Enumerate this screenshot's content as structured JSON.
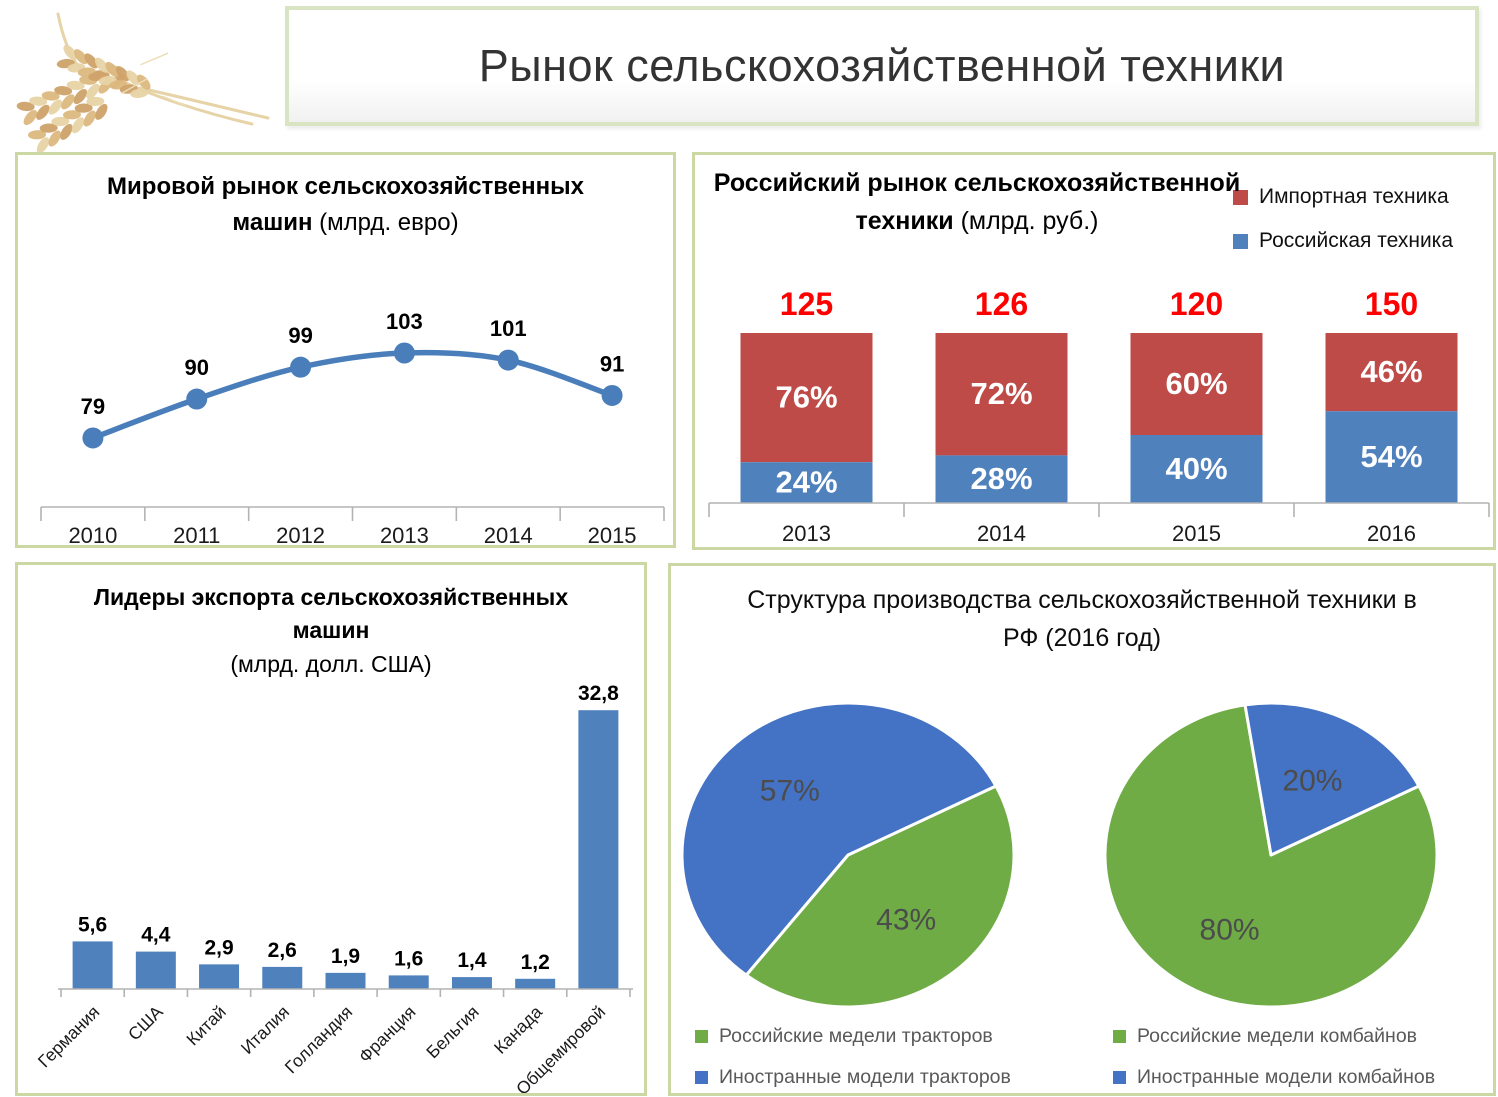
{
  "header": {
    "title": "Рынок сельскохозяйственной техники"
  },
  "chart_data": [
    {
      "id": "world-market",
      "type": "line",
      "title_line1": "Мировой рынок сельскохозяйственных",
      "title_line2_bold": "машин",
      "title_unit": "(млрд. евро)",
      "categories": [
        "2010",
        "2011",
        "2012",
        "2013",
        "2014",
        "2015"
      ],
      "values": [
        79,
        90,
        99,
        103,
        101,
        91
      ],
      "data_labels": [
        "79",
        "90",
        "99",
        "103",
        "101",
        "91"
      ],
      "line_color": "#4a7ebb",
      "marker_color": "#4a7ebb",
      "data_label_color": "#000000",
      "axis_color": "#b3b3b3",
      "tick_label_color": "#1a1a1a",
      "ylim": [
        60,
        115
      ],
      "grid": false,
      "legend": null
    },
    {
      "id": "russian-market",
      "type": "stacked-bar-100",
      "title_line1": "Российский рынок сельскохозяйственной",
      "title_line2_bold": "техники",
      "title_unit": "(млрд. руб.)",
      "categories": [
        "2013",
        "2014",
        "2015",
        "2016"
      ],
      "series": [
        {
          "name": "Импортная техника",
          "color": "#be4b48",
          "values_pct": [
            76,
            72,
            60,
            46
          ],
          "labels": [
            "76%",
            "72%",
            "60%",
            "46%"
          ]
        },
        {
          "name": "Российская техника",
          "color": "#4f81bd",
          "values_pct": [
            24,
            28,
            40,
            54
          ],
          "labels": [
            "24%",
            "28%",
            "40%",
            "54%"
          ]
        }
      ],
      "totals": [
        125,
        126,
        120,
        150
      ],
      "totals_labels": [
        "125",
        "126",
        "120",
        "150"
      ],
      "totals_color": "#fe0000",
      "pct_label_color": "#ffffff",
      "axis_color": "#b3b3b3",
      "tick_label_color": "#1a1a1a",
      "legend_position": "top-right"
    },
    {
      "id": "export-leaders",
      "type": "bar",
      "title_line1": "Лидеры экспорта сельскохозяйственных",
      "title_line2_bold": "машин",
      "title_unit": "(млрд. долл. США)",
      "categories": [
        "Германия",
        "США",
        "Китай",
        "Италия",
        "Голландия",
        "Франция",
        "Бельгия",
        "Канада",
        "Общемировой"
      ],
      "values": [
        5.6,
        4.4,
        2.9,
        2.6,
        1.9,
        1.6,
        1.4,
        1.2,
        32.8
      ],
      "data_labels": [
        "5,6",
        "4,4",
        "2,9",
        "2,6",
        "1,9",
        "1,6",
        "1,4",
        "1,2",
        "32,8"
      ],
      "bar_color": "#4f81bd",
      "data_label_color": "#000000",
      "axis_color": "#b3b3b3",
      "tick_label_color": "#1a1a1a",
      "grid": false
    },
    {
      "id": "production-structure",
      "type": "pie",
      "title_line1": "Структура производства сельскохозяйственной техники в",
      "title_line2": "РФ (2016 год)",
      "start_angle_deg": 63,
      "pies": [
        {
          "name": "tractors",
          "slices": [
            {
              "legend": "Российские медели тракторов",
              "pct": 43,
              "label": "43%",
              "color": "#6fac46"
            },
            {
              "legend": "Иностранные модели тракторов",
              "pct": 57,
              "label": "57%",
              "color": "#4472c4"
            }
          ]
        },
        {
          "name": "combines",
          "slices": [
            {
              "legend": "Российские медели комбайнов",
              "pct": 80,
              "label": "80%",
              "color": "#6fac46"
            },
            {
              "legend": "Иностранные модели комбайнов",
              "pct": 20,
              "label": "20%",
              "color": "#4472c4"
            }
          ]
        }
      ],
      "pie_label_color": "#4c4c4c",
      "legend_text_color": "#595959"
    }
  ]
}
